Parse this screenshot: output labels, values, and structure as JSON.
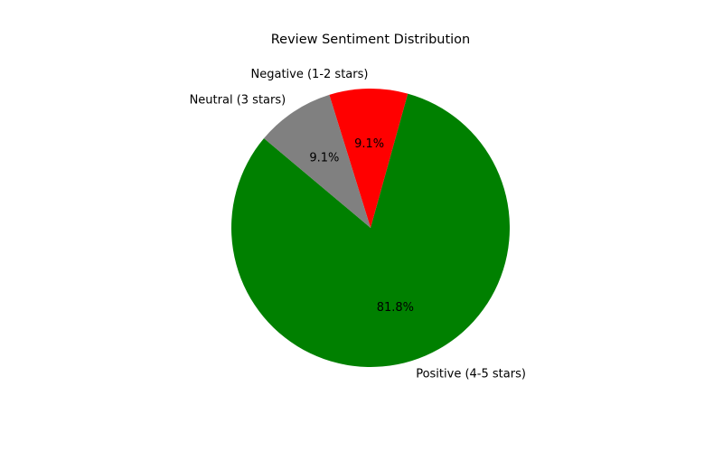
{
  "chart_data": {
    "type": "pie",
    "title": "Review Sentiment Distribution",
    "slices": [
      {
        "label": "Positive (4-5 stars)",
        "value": 81.8,
        "pct_label": "81.8%",
        "color": "#008000"
      },
      {
        "label": "Negative (1-2 stars)",
        "value": 9.1,
        "pct_label": "9.1%",
        "color": "#ff0000"
      },
      {
        "label": "Neutral (3 stars)",
        "value": 9.1,
        "pct_label": "9.1%",
        "color": "#808080"
      }
    ],
    "start_angle_deg": 140,
    "direction": "counterclockwise",
    "legend": "none"
  }
}
